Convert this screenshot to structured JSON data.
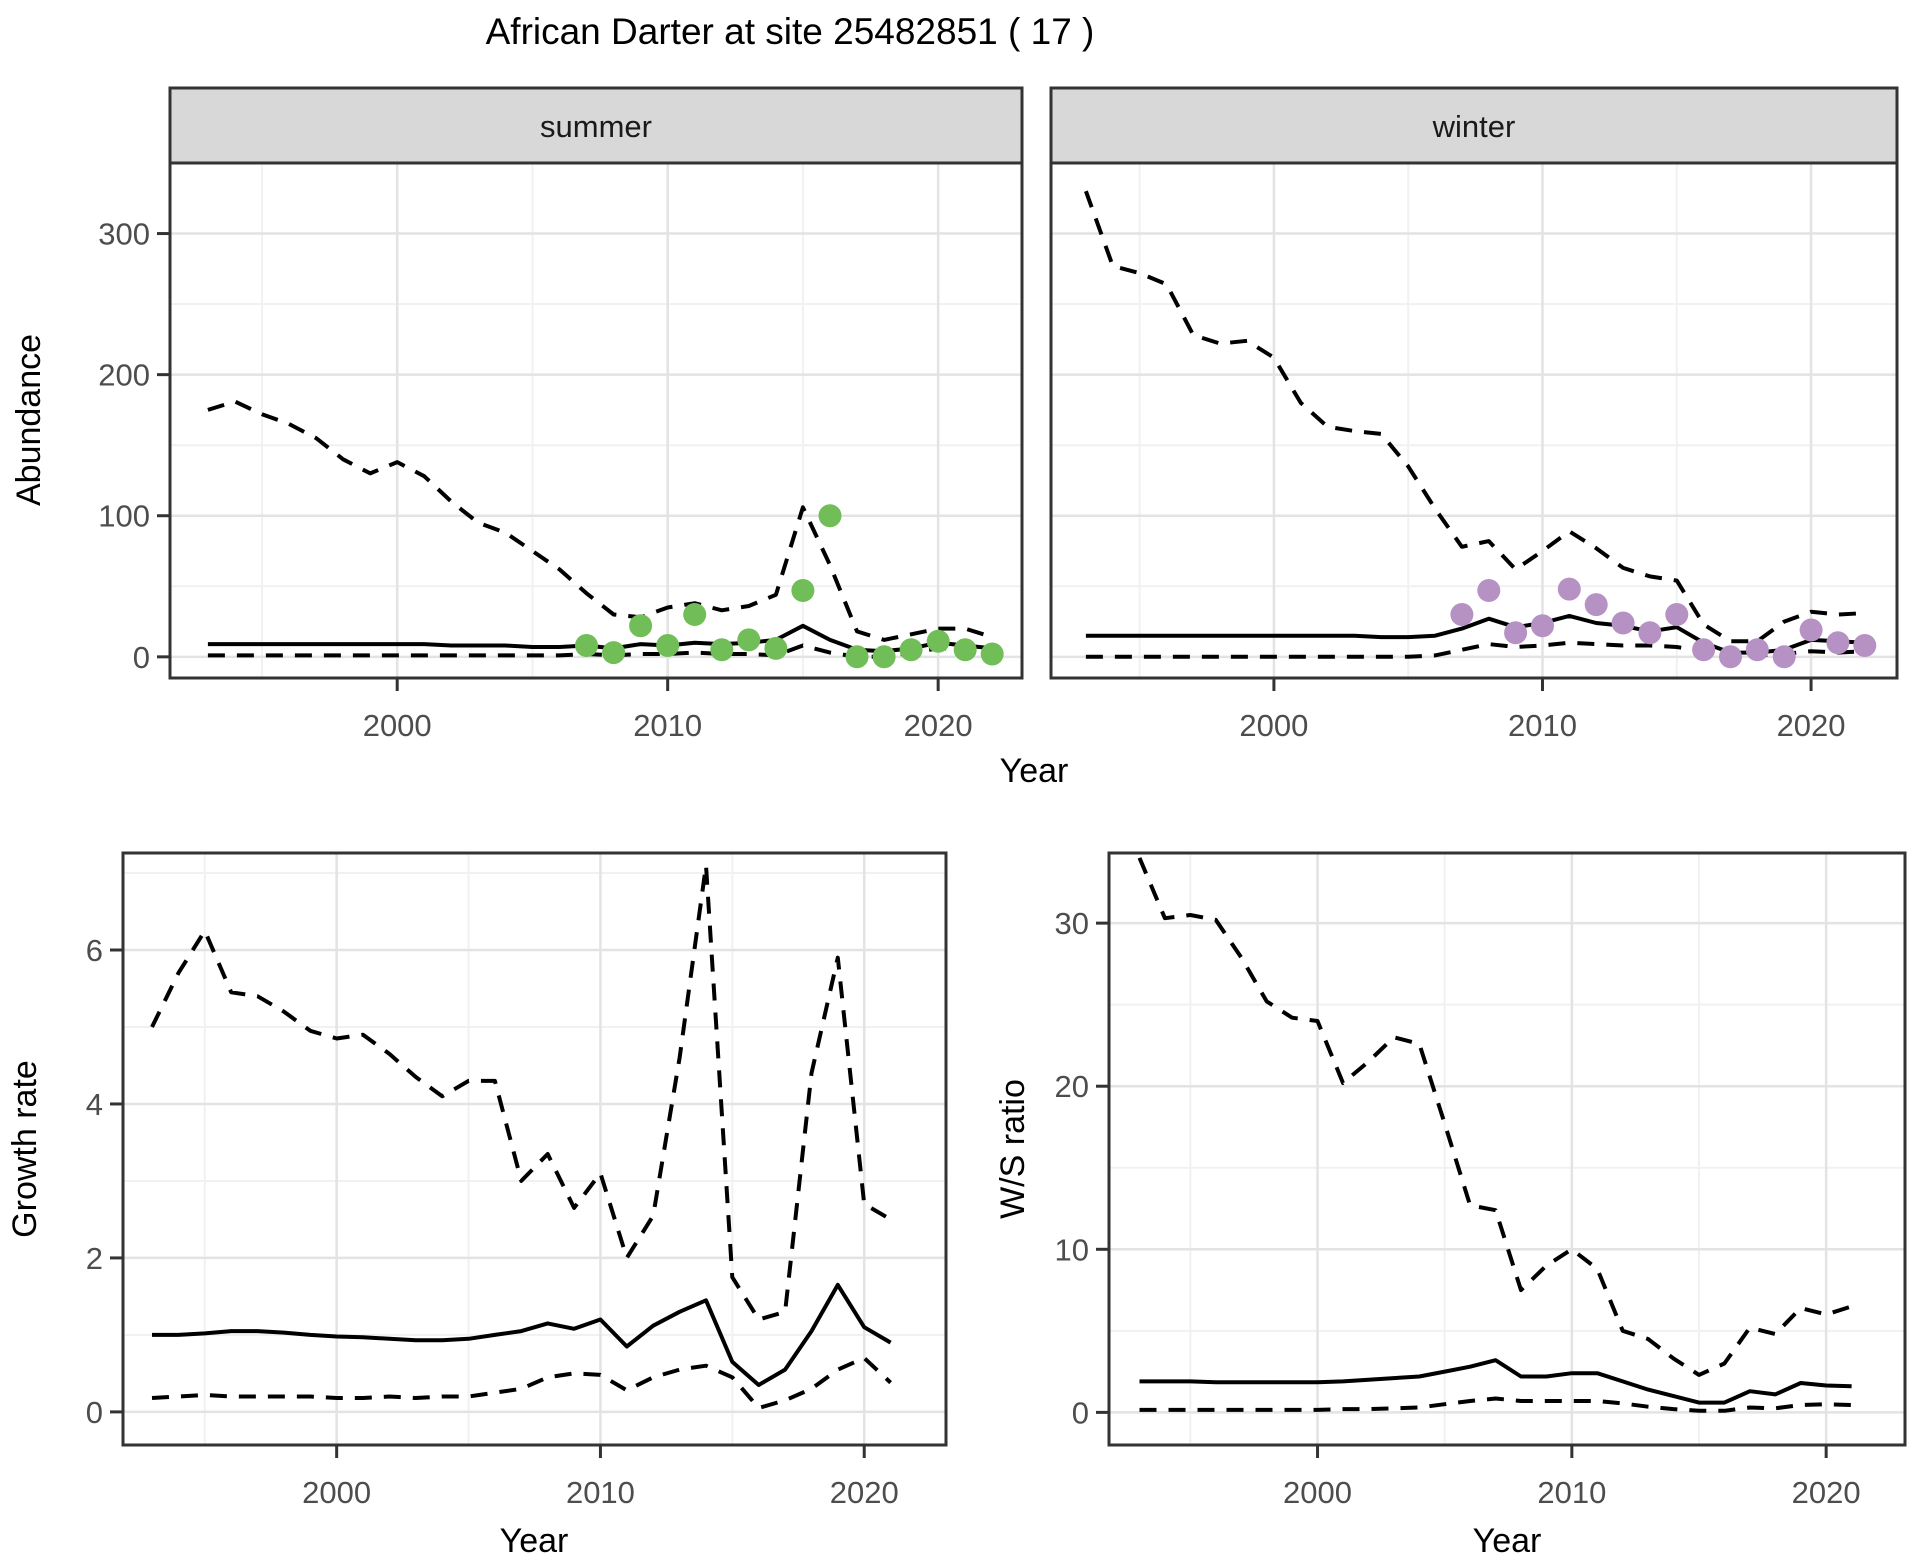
{
  "title": "African Darter at site 25482851 ( 17 )",
  "labels": {
    "x_axis": "Year",
    "abundance_axis": "Abundance",
    "growth_axis": "Growth rate",
    "ws_axis": "W/S ratio",
    "facet_summer": "summer",
    "facet_winter": "winter"
  },
  "colors": {
    "observed_summer": "#71bd58",
    "observed_winter": "#b691c3",
    "line": "#000000",
    "strip_fill": "#d8d8d8",
    "panel_border": "#333333",
    "grid_major": "#e3e3e3",
    "grid_minor": "#f1f1f1",
    "tick_text": "#4d4d4d",
    "tick_mark": "#333333"
  },
  "chart_data": [
    {
      "id": "abundance-summer",
      "type": "line",
      "facet_label": "summer",
      "xlabel": "Year",
      "ylabel": "Abundance",
      "xlim": [
        1991.6,
        2023.1
      ],
      "ylim": [
        -15,
        350
      ],
      "xticks_major": [
        2000,
        2010,
        2020
      ],
      "xticks_minor": [
        1995,
        2005,
        2015
      ],
      "yticks_major": [
        0,
        100,
        200,
        300
      ],
      "yticks_minor": [
        50,
        150,
        250
      ],
      "show_y_tick_labels": true,
      "years": [
        1993,
        1994,
        1995,
        1996,
        1997,
        1998,
        1999,
        2000,
        2001,
        2002,
        2003,
        2004,
        2005,
        2006,
        2007,
        2008,
        2009,
        2010,
        2011,
        2012,
        2013,
        2014,
        2015,
        2016,
        2017,
        2018,
        2019,
        2020,
        2021,
        2022
      ],
      "series": [
        {
          "name": "upper-credible-interval",
          "style": "dashed",
          "values": [
            175,
            181,
            172,
            165,
            155,
            140,
            130,
            138,
            128,
            110,
            95,
            88,
            75,
            62,
            45,
            30,
            28,
            35,
            38,
            33,
            36,
            44,
            106,
            65,
            18,
            12,
            16,
            20,
            20,
            14
          ]
        },
        {
          "name": "model-mean",
          "style": "solid",
          "values": [
            9,
            9,
            9,
            9,
            9,
            9,
            9,
            9,
            9,
            8,
            8,
            8,
            7,
            7,
            8,
            6,
            9,
            8,
            10,
            9,
            10,
            12,
            22,
            12,
            5,
            4,
            6,
            10,
            8,
            6
          ]
        },
        {
          "name": "lower-credible-interval",
          "style": "dashed",
          "values": [
            1,
            1,
            1,
            1,
            1,
            1,
            1,
            1,
            1,
            1,
            1,
            1,
            1,
            1,
            2,
            1,
            2,
            2,
            3,
            2,
            2,
            1,
            8,
            3,
            0,
            0,
            3,
            6,
            6,
            5
          ]
        }
      ],
      "points": {
        "name": "observed-counts",
        "color_key": "observed_summer",
        "years": [
          2007,
          2008,
          2009,
          2010,
          2011,
          2012,
          2013,
          2014,
          2015,
          2016,
          2017,
          2018,
          2019,
          2020,
          2021,
          2022
        ],
        "values": [
          8,
          3,
          22,
          8,
          30,
          5,
          12,
          6,
          47,
          100,
          0,
          0,
          5,
          11,
          5,
          2
        ]
      }
    },
    {
      "id": "abundance-winter",
      "type": "line",
      "facet_label": "winter",
      "xlabel": "Year",
      "ylabel": "Abundance",
      "xlim": [
        1991.7,
        2023.2
      ],
      "ylim": [
        -15,
        350
      ],
      "xticks_major": [
        2000,
        2010,
        2020
      ],
      "xticks_minor": [
        1995,
        2005,
        2015
      ],
      "yticks_major": [
        0,
        100,
        200,
        300
      ],
      "yticks_minor": [
        50,
        150,
        250
      ],
      "show_y_tick_labels": false,
      "years": [
        1993,
        1994,
        1995,
        1996,
        1997,
        1998,
        1999,
        2000,
        2001,
        2002,
        2003,
        2004,
        2005,
        2006,
        2007,
        2008,
        2009,
        2010,
        2011,
        2012,
        2013,
        2014,
        2015,
        2016,
        2017,
        2018,
        2019,
        2020,
        2021,
        2022
      ],
      "series": [
        {
          "name": "upper-credible-interval",
          "style": "dashed",
          "values": [
            330,
            277,
            272,
            264,
            228,
            222,
            224,
            212,
            180,
            163,
            160,
            158,
            135,
            105,
            78,
            82,
            62,
            75,
            89,
            77,
            63,
            57,
            54,
            23,
            11,
            11,
            25,
            32,
            30,
            31
          ]
        },
        {
          "name": "model-mean",
          "style": "solid",
          "values": [
            15,
            15,
            15,
            15,
            15,
            15,
            15,
            15,
            15,
            15,
            15,
            14,
            14,
            15,
            20,
            27,
            21,
            24,
            29,
            24,
            22,
            18,
            21,
            10,
            3,
            3,
            5,
            12,
            11,
            10
          ]
        },
        {
          "name": "lower-credible-interval",
          "style": "dashed",
          "values": [
            0,
            0,
            0,
            0,
            0,
            0,
            0,
            0,
            0,
            0,
            0,
            0,
            0,
            1,
            5,
            9,
            7,
            8,
            10,
            9,
            8,
            8,
            7,
            4,
            0,
            1,
            2,
            4,
            3,
            4
          ]
        }
      ],
      "points": {
        "name": "observed-counts",
        "color_key": "observed_winter",
        "years": [
          2007,
          2008,
          2009,
          2010,
          2011,
          2012,
          2013,
          2014,
          2015,
          2016,
          2017,
          2018,
          2019,
          2020,
          2021,
          2022
        ],
        "values": [
          30,
          47,
          17,
          22,
          48,
          37,
          24,
          17,
          30,
          5,
          0,
          5,
          0,
          19,
          10,
          8
        ]
      }
    },
    {
      "id": "growth-rate",
      "type": "line",
      "facet_label": null,
      "xlabel": "Year",
      "ylabel": "Growth rate",
      "xlim": [
        1991.9,
        2023.1
      ],
      "ylim": [
        -0.43,
        7.26
      ],
      "xticks_major": [
        2000,
        2010,
        2020
      ],
      "xticks_minor": [
        1995,
        2005,
        2015
      ],
      "yticks_major": [
        0,
        2,
        4,
        6
      ],
      "yticks_minor": [
        1,
        3,
        5,
        7
      ],
      "show_y_tick_labels": true,
      "years": [
        1993,
        1994,
        1995,
        1996,
        1997,
        1998,
        1999,
        2000,
        2001,
        2002,
        2003,
        2004,
        2005,
        2006,
        2007,
        2008,
        2009,
        2010,
        2011,
        2012,
        2013,
        2014,
        2015,
        2016,
        2017,
        2018,
        2019,
        2020,
        2021
      ],
      "series": [
        {
          "name": "upper-credible-interval",
          "style": "dashed",
          "values": [
            5.0,
            5.7,
            6.25,
            5.45,
            5.4,
            5.2,
            4.95,
            4.85,
            4.9,
            4.65,
            4.35,
            4.1,
            4.3,
            4.3,
            3.0,
            3.35,
            2.65,
            3.1,
            2.0,
            2.55,
            4.6,
            7.1,
            1.75,
            1.2,
            1.3,
            4.4,
            5.9,
            2.7,
            2.5
          ]
        },
        {
          "name": "model-mean",
          "style": "solid",
          "values": [
            1.0,
            1.0,
            1.02,
            1.05,
            1.05,
            1.03,
            1.0,
            0.98,
            0.97,
            0.95,
            0.93,
            0.93,
            0.95,
            1.0,
            1.05,
            1.15,
            1.08,
            1.2,
            0.85,
            1.12,
            1.3,
            1.45,
            0.65,
            0.35,
            0.55,
            1.05,
            1.65,
            1.1,
            0.9
          ]
        },
        {
          "name": "lower-credible-interval",
          "style": "dashed",
          "values": [
            0.18,
            0.2,
            0.22,
            0.2,
            0.2,
            0.2,
            0.2,
            0.18,
            0.18,
            0.2,
            0.18,
            0.2,
            0.2,
            0.25,
            0.3,
            0.45,
            0.5,
            0.48,
            0.28,
            0.45,
            0.55,
            0.6,
            0.45,
            0.05,
            0.15,
            0.3,
            0.55,
            0.7,
            0.38
          ]
        }
      ],
      "points": null
    },
    {
      "id": "ws-ratio",
      "type": "line",
      "facet_label": null,
      "xlabel": "Year",
      "ylabel": "W/S ratio",
      "xlim": [
        1991.8,
        2023.1
      ],
      "ylim": [
        -2,
        34.3
      ],
      "xticks_major": [
        2000,
        2010,
        2020
      ],
      "xticks_minor": [
        1995,
        2005,
        2015
      ],
      "yticks_major": [
        0,
        10,
        20,
        30
      ],
      "yticks_minor": [
        5,
        15,
        25
      ],
      "show_y_tick_labels": true,
      "years": [
        1993,
        1994,
        1995,
        1996,
        1997,
        1998,
        1999,
        2000,
        2001,
        2002,
        2003,
        2004,
        2005,
        2006,
        2007,
        2008,
        2009,
        2010,
        2011,
        2012,
        2013,
        2014,
        2015,
        2016,
        2017,
        2018,
        2019,
        2020,
        2021
      ],
      "series": [
        {
          "name": "upper-credible-interval",
          "style": "dashed",
          "values": [
            34,
            30.3,
            30.5,
            30.2,
            27.9,
            25.2,
            24.2,
            24.0,
            20.2,
            21.5,
            23.0,
            22.6,
            17.7,
            12.7,
            12.4,
            7.5,
            9.0,
            10.0,
            8.8,
            5.0,
            4.5,
            3.3,
            2.3,
            3.0,
            5.2,
            4.8,
            6.4,
            6.0,
            6.5
          ]
        },
        {
          "name": "model-mean",
          "style": "solid",
          "values": [
            1.9,
            1.9,
            1.9,
            1.85,
            1.85,
            1.85,
            1.85,
            1.85,
            1.9,
            2.0,
            2.1,
            2.2,
            2.5,
            2.8,
            3.2,
            2.2,
            2.2,
            2.4,
            2.4,
            1.9,
            1.4,
            1.0,
            0.6,
            0.6,
            1.3,
            1.1,
            1.8,
            1.65,
            1.6
          ]
        },
        {
          "name": "lower-credible-interval",
          "style": "dashed",
          "values": [
            0.15,
            0.15,
            0.15,
            0.15,
            0.15,
            0.15,
            0.15,
            0.15,
            0.2,
            0.2,
            0.25,
            0.3,
            0.5,
            0.7,
            0.85,
            0.7,
            0.7,
            0.7,
            0.7,
            0.55,
            0.35,
            0.2,
            0.1,
            0.1,
            0.3,
            0.25,
            0.45,
            0.5,
            0.45
          ]
        }
      ],
      "points": null
    }
  ]
}
